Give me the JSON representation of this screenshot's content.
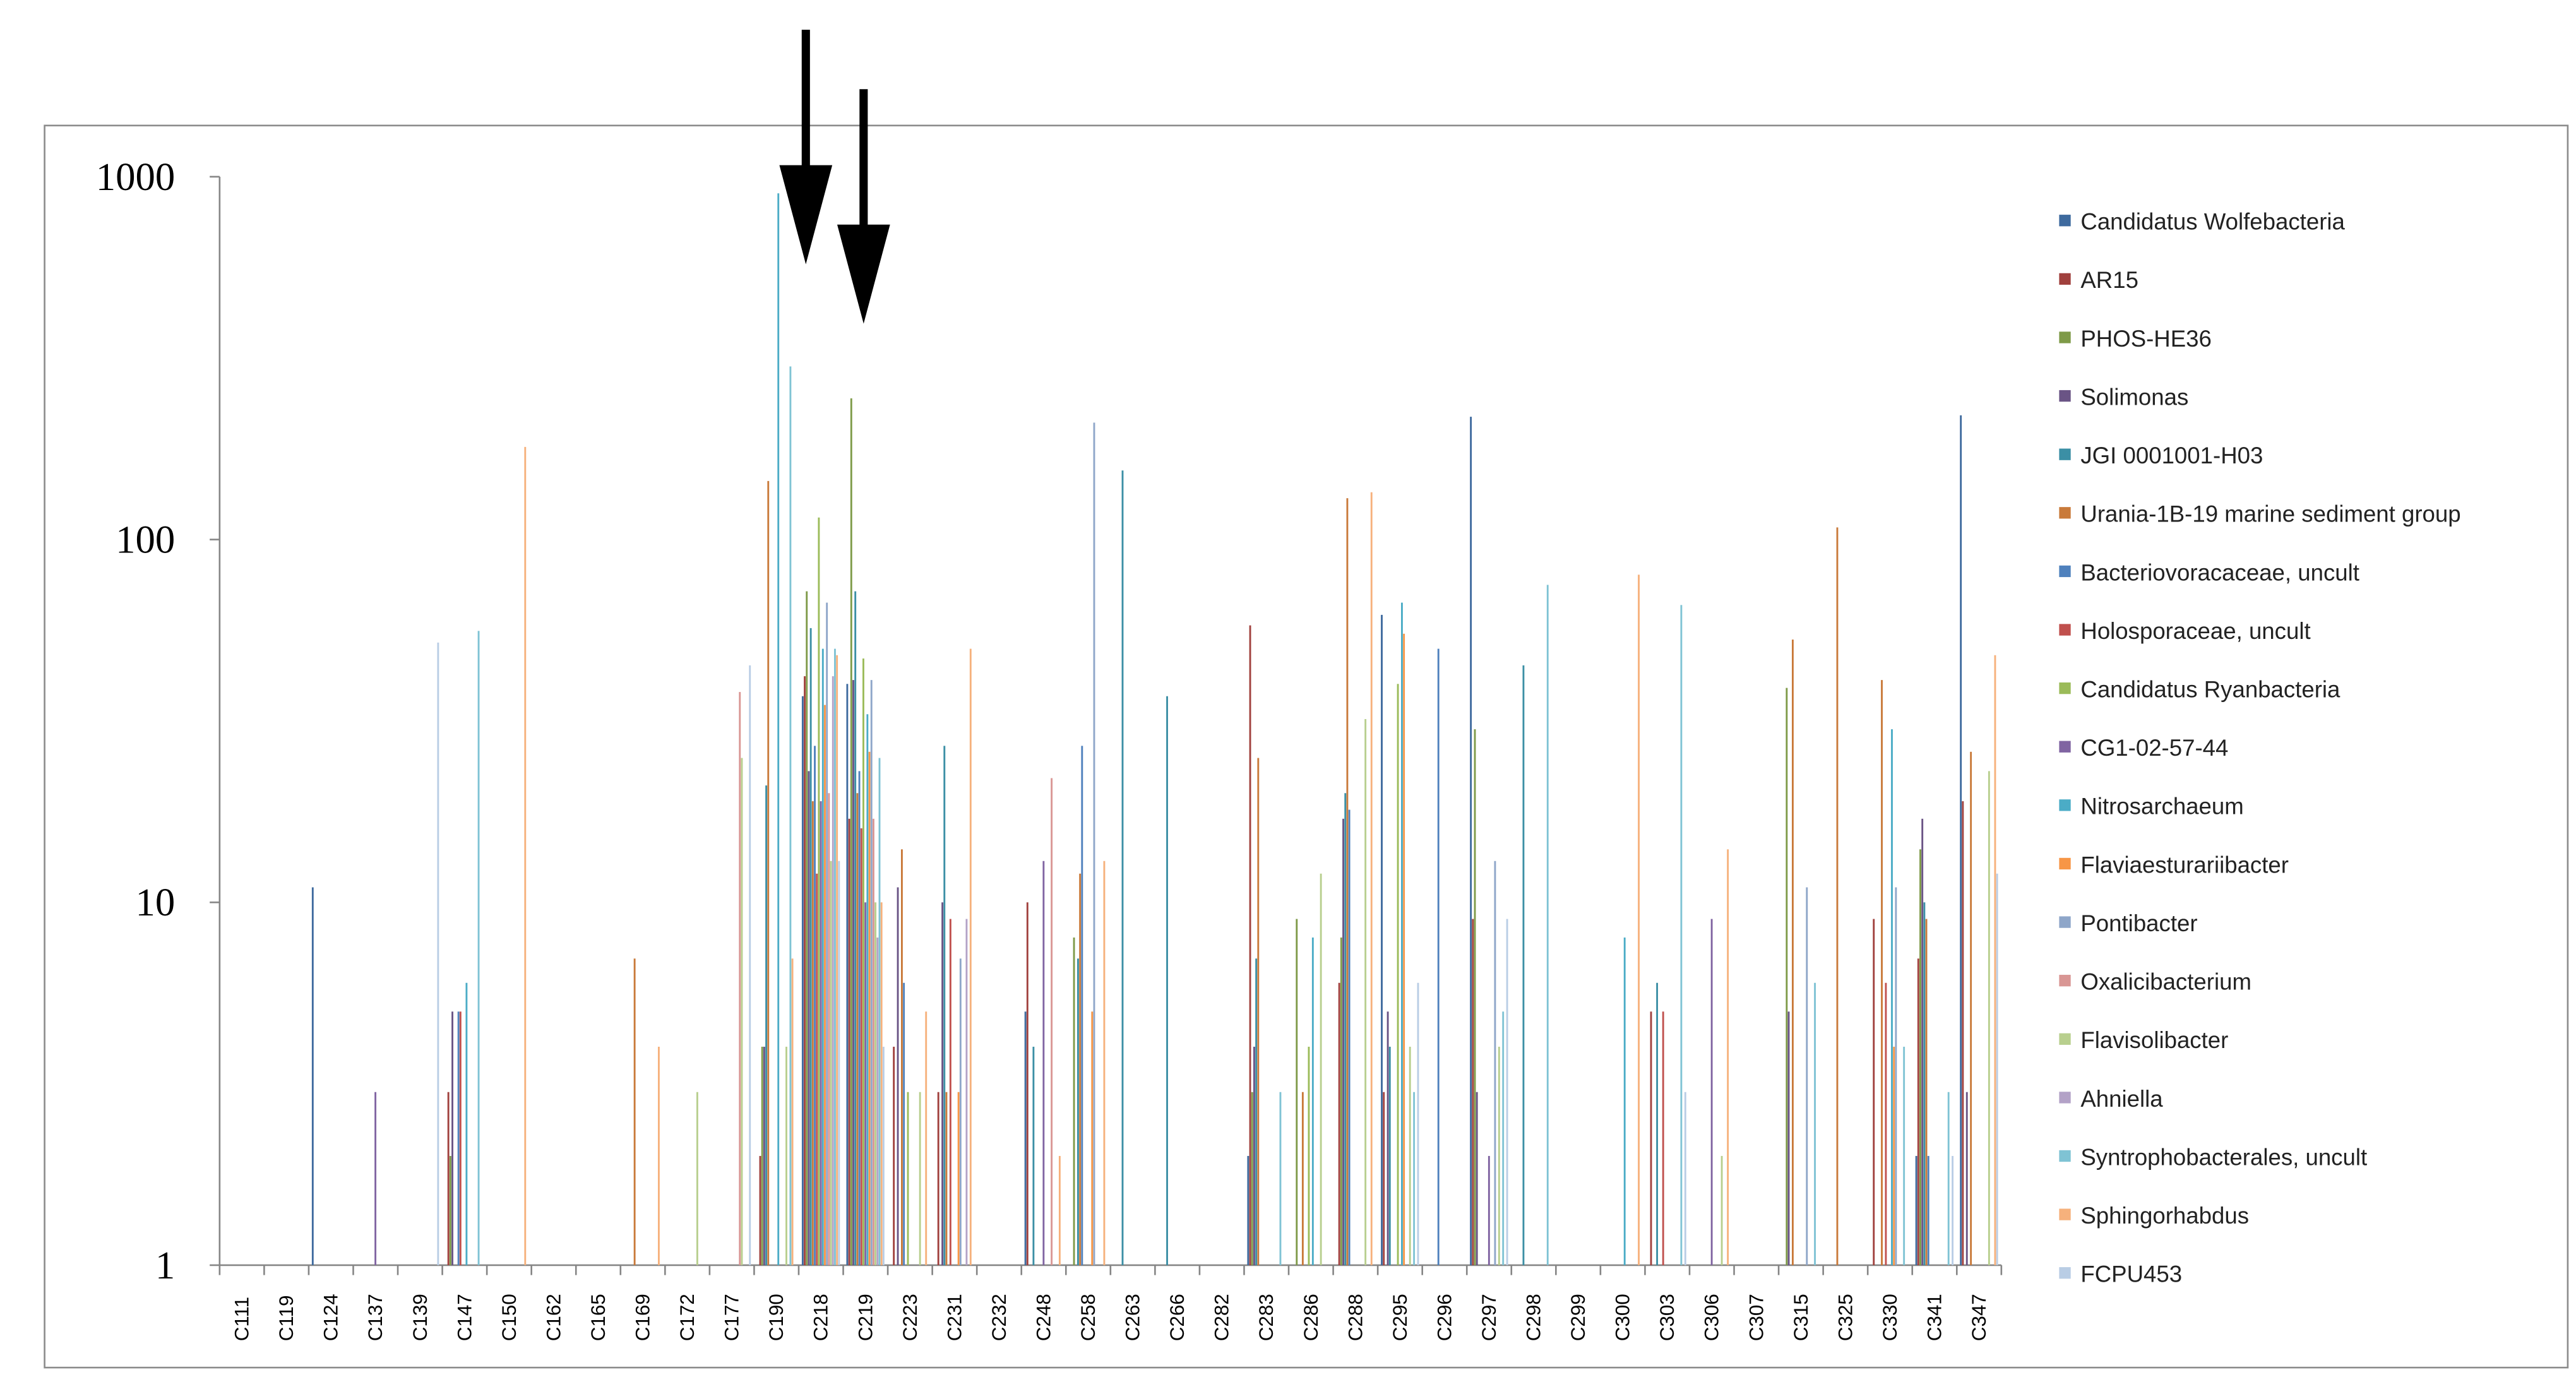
{
  "chart_data": {
    "type": "bar",
    "log_scale": true,
    "grid": false,
    "legend_position": "right",
    "ylim": [
      1,
      1000
    ],
    "yticks": [
      1,
      10,
      100,
      1000
    ],
    "categories": [
      "C111",
      "C119",
      "C124",
      "C137",
      "C139",
      "C147",
      "C150",
      "C162",
      "C165",
      "C169",
      "C172",
      "C177",
      "C190",
      "C218",
      "C219",
      "C223",
      "C231",
      "C232",
      "C248",
      "C258",
      "C263",
      "C266",
      "C282",
      "C283",
      "C286",
      "C288",
      "C295",
      "C296",
      "C297",
      "C298",
      "C299",
      "C300",
      "C303",
      "C306",
      "C307",
      "C315",
      "C325",
      "C330",
      "C341",
      "C347"
    ],
    "series": [
      {
        "name": "Candidatus Wolfebacteria",
        "color": "#3e6a9e",
        "values": [
          null,
          null,
          11,
          null,
          null,
          null,
          null,
          null,
          null,
          null,
          null,
          null,
          null,
          37,
          40,
          null,
          null,
          null,
          5,
          null,
          null,
          null,
          null,
          2,
          null,
          null,
          62,
          null,
          218,
          null,
          null,
          null,
          null,
          null,
          null,
          null,
          null,
          null,
          2,
          220
        ]
      },
      {
        "name": "AR15",
        "color": "#a0403d",
        "values": [
          null,
          null,
          null,
          null,
          null,
          3,
          null,
          null,
          null,
          null,
          null,
          null,
          2,
          42,
          17,
          4,
          3,
          null,
          10,
          null,
          null,
          null,
          null,
          58,
          null,
          6,
          3,
          null,
          9,
          null,
          null,
          null,
          5,
          null,
          null,
          null,
          null,
          9,
          7,
          19
        ]
      },
      {
        "name": "PHOS-HE36",
        "color": "#7e9a48",
        "values": [
          null,
          null,
          null,
          null,
          null,
          2,
          null,
          null,
          null,
          null,
          null,
          null,
          4,
          72,
          245,
          null,
          null,
          null,
          null,
          8,
          null,
          null,
          null,
          3,
          9,
          8,
          null,
          null,
          30,
          null,
          null,
          null,
          null,
          null,
          null,
          39,
          null,
          null,
          14,
          null
        ]
      },
      {
        "name": "Solimonas",
        "color": "#6a5485",
        "values": [
          null,
          null,
          null,
          null,
          null,
          5,
          null,
          null,
          null,
          null,
          null,
          null,
          4,
          23,
          41,
          11,
          10,
          null,
          null,
          null,
          null,
          null,
          null,
          4,
          null,
          17,
          5,
          null,
          3,
          null,
          null,
          null,
          null,
          null,
          null,
          5,
          null,
          null,
          17,
          3
        ]
      },
      {
        "name": "JGI 0001001-H03",
        "color": "#3b8fa5",
        "values": [
          null,
          null,
          null,
          null,
          null,
          null,
          null,
          null,
          null,
          null,
          null,
          null,
          21,
          57,
          72,
          null,
          27,
          null,
          4,
          7,
          155,
          37,
          null,
          7,
          null,
          20,
          4,
          null,
          null,
          45,
          null,
          null,
          6,
          null,
          null,
          null,
          null,
          null,
          10,
          null
        ]
      },
      {
        "name": "Urania-1B-19 marine sediment group",
        "color": "#c97a3a",
        "values": [
          null,
          null,
          null,
          null,
          null,
          null,
          null,
          null,
          null,
          7,
          null,
          null,
          145,
          19,
          20,
          14,
          3,
          null,
          null,
          12,
          null,
          null,
          null,
          25,
          3,
          130,
          null,
          null,
          null,
          null,
          null,
          null,
          null,
          null,
          null,
          53,
          108,
          41,
          9,
          26
        ]
      },
      {
        "name": "Bacteriovoracaceae, uncult",
        "color": "#4f81bd",
        "values": [
          null,
          null,
          null,
          null,
          null,
          5,
          null,
          null,
          null,
          null,
          null,
          null,
          null,
          27,
          23,
          6,
          null,
          null,
          null,
          27,
          null,
          null,
          null,
          null,
          null,
          18,
          null,
          50,
          null,
          null,
          null,
          null,
          null,
          null,
          null,
          null,
          null,
          null,
          2,
          null
        ]
      },
      {
        "name": "Holosporaceae, uncult",
        "color": "#c0504d",
        "values": [
          null,
          null,
          null,
          null,
          null,
          5,
          null,
          null,
          null,
          null,
          null,
          null,
          null,
          12,
          16,
          null,
          9,
          null,
          null,
          null,
          null,
          null,
          null,
          null,
          null,
          null,
          null,
          null,
          null,
          null,
          null,
          null,
          5,
          null,
          null,
          null,
          null,
          6,
          null,
          null
        ]
      },
      {
        "name": "Candidatus Ryanbacteria",
        "color": "#9bbb59",
        "values": [
          null,
          null,
          null,
          null,
          null,
          null,
          null,
          null,
          null,
          null,
          null,
          null,
          null,
          115,
          47,
          3,
          null,
          null,
          null,
          null,
          null,
          null,
          null,
          null,
          4,
          null,
          40,
          null,
          null,
          null,
          null,
          null,
          null,
          null,
          null,
          null,
          null,
          null,
          null,
          null
        ]
      },
      {
        "name": "CG1-02-57-44",
        "color": "#8064a2",
        "values": [
          null,
          null,
          null,
          3,
          null,
          null,
          null,
          null,
          null,
          null,
          null,
          null,
          null,
          19,
          10,
          null,
          null,
          null,
          13,
          null,
          null,
          null,
          null,
          null,
          null,
          null,
          null,
          null,
          2,
          null,
          null,
          null,
          null,
          9,
          null,
          null,
          null,
          null,
          null,
          null
        ]
      },
      {
        "name": "Nitrosarchaeum",
        "color": "#4bacc6",
        "values": [
          null,
          null,
          null,
          null,
          null,
          6,
          null,
          null,
          null,
          null,
          null,
          null,
          900,
          50,
          33,
          null,
          null,
          null,
          null,
          null,
          null,
          null,
          null,
          null,
          8,
          null,
          67,
          null,
          null,
          null,
          null,
          8,
          null,
          null,
          null,
          null,
          null,
          30,
          null,
          null
        ]
      },
      {
        "name": "Flaviaesturariibacter",
        "color": "#f79646",
        "values": [
          null,
          null,
          null,
          null,
          null,
          null,
          null,
          null,
          null,
          null,
          null,
          null,
          null,
          35,
          26,
          null,
          3,
          null,
          null,
          5,
          null,
          null,
          null,
          null,
          null,
          null,
          55,
          null,
          null,
          null,
          null,
          null,
          null,
          null,
          null,
          null,
          null,
          4,
          null,
          null
        ]
      },
      {
        "name": "Pontibacter",
        "color": "#8ea6c9",
        "values": [
          null,
          null,
          null,
          null,
          null,
          null,
          null,
          null,
          null,
          null,
          null,
          null,
          null,
          67,
          41,
          null,
          7,
          null,
          null,
          210,
          null,
          null,
          null,
          null,
          null,
          null,
          null,
          null,
          13,
          null,
          null,
          null,
          null,
          null,
          null,
          11,
          null,
          11,
          null,
          null
        ]
      },
      {
        "name": "Oxalicibacterium",
        "color": "#d99694",
        "values": [
          null,
          null,
          null,
          null,
          null,
          null,
          null,
          null,
          null,
          null,
          null,
          38,
          null,
          20,
          17,
          null,
          null,
          null,
          22,
          null,
          null,
          null,
          null,
          null,
          null,
          null,
          null,
          null,
          null,
          null,
          null,
          null,
          null,
          null,
          null,
          null,
          null,
          null,
          null,
          null
        ]
      },
      {
        "name": "Flavisolibacter",
        "color": "#b8cf8e",
        "values": [
          null,
          null,
          null,
          null,
          null,
          null,
          null,
          null,
          null,
          null,
          3,
          25,
          4,
          13,
          10,
          3,
          null,
          null,
          null,
          null,
          null,
          null,
          null,
          null,
          12,
          32,
          4,
          null,
          4,
          null,
          null,
          null,
          null,
          2,
          null,
          null,
          null,
          null,
          null,
          23
        ]
      },
      {
        "name": "Ahniella",
        "color": "#b3a2c7",
        "values": [
          null,
          null,
          null,
          null,
          null,
          null,
          null,
          null,
          null,
          null,
          null,
          null,
          null,
          42,
          8,
          null,
          9,
          null,
          null,
          null,
          null,
          null,
          null,
          null,
          null,
          null,
          null,
          null,
          null,
          null,
          null,
          null,
          null,
          null,
          null,
          null,
          null,
          null,
          null,
          null
        ]
      },
      {
        "name": "Syntrophobacterales, uncult",
        "color": "#7fc3d4",
        "values": [
          null,
          null,
          null,
          null,
          null,
          56,
          null,
          null,
          null,
          null,
          null,
          null,
          300,
          50,
          25,
          null,
          null,
          null,
          null,
          null,
          null,
          null,
          null,
          3,
          null,
          null,
          3,
          null,
          5,
          75,
          null,
          null,
          66,
          null,
          null,
          6,
          null,
          4,
          3,
          null
        ]
      },
      {
        "name": "Sphingorhabdus",
        "color": "#f6b17c",
        "values": [
          null,
          null,
          null,
          null,
          null,
          null,
          180,
          null,
          null,
          4,
          null,
          null,
          7,
          48,
          10,
          5,
          50,
          null,
          2,
          13,
          null,
          null,
          null,
          null,
          null,
          135,
          null,
          null,
          null,
          null,
          null,
          80,
          null,
          14,
          null,
          null,
          null,
          null,
          null,
          48
        ]
      },
      {
        "name": "FCPU453",
        "color": "#b9cde5",
        "values": [
          null,
          null,
          null,
          null,
          52,
          null,
          null,
          null,
          null,
          null,
          null,
          45,
          null,
          13,
          4,
          null,
          null,
          null,
          null,
          null,
          null,
          null,
          null,
          null,
          null,
          null,
          6,
          null,
          9,
          null,
          null,
          null,
          3,
          null,
          null,
          null,
          null,
          null,
          2,
          12
        ]
      }
    ]
  }
}
